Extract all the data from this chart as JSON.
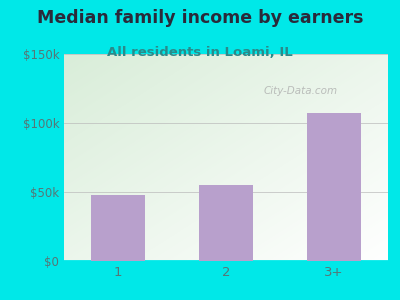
{
  "title": "Median family income by earners",
  "subtitle": "All residents in Loami, IL",
  "categories": [
    "1",
    "2",
    "3+"
  ],
  "values": [
    48000,
    55000,
    107000
  ],
  "bar_color": "#b8a0cc",
  "background_color": "#00e8e8",
  "title_color": "#2a2a3a",
  "subtitle_color": "#2a8a8a",
  "tick_color": "#557777",
  "ylim": [
    0,
    150000
  ],
  "yticks": [
    0,
    50000,
    100000,
    150000
  ],
  "ytick_labels": [
    "$0",
    "$50k",
    "$100k",
    "$150k"
  ],
  "watermark": "City-Data.com",
  "title_fontsize": 12.5,
  "subtitle_fontsize": 9.5
}
